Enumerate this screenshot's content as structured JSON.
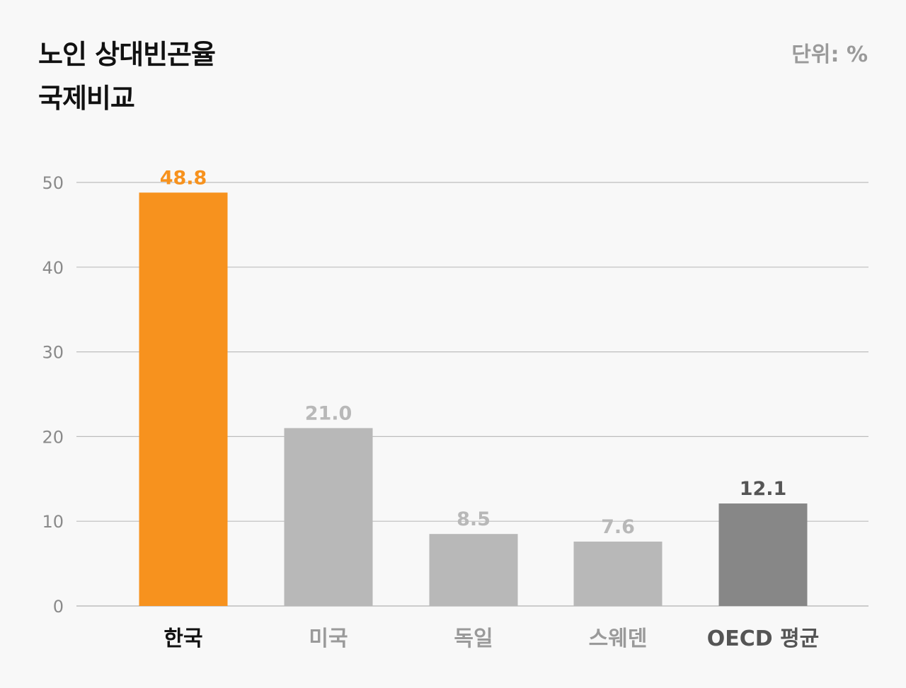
{
  "title": {
    "line1": "노인 상대빈곤율",
    "line2": "국제비교"
  },
  "unit_label": "단위: %",
  "colors": {
    "highlight": "#f7921e",
    "neutral": "#b8b8b8",
    "average": "#878787",
    "label_highlight": "#f7921e",
    "label_neutral": "#b8b8b8",
    "label_average": "#555555",
    "cat_highlight": "#111111",
    "cat_neutral": "#9a9a9a",
    "cat_average": "#555555",
    "grid": "#bdbdbd"
  },
  "chart_data": {
    "type": "bar",
    "categories": [
      "한국",
      "미국",
      "독일",
      "스웨덴",
      "OECD 평균"
    ],
    "values": [
      48.8,
      21.0,
      8.5,
      7.6,
      12.1
    ],
    "value_labels": [
      "48.8",
      "21.0",
      "8.5",
      "7.6",
      "12.1"
    ],
    "styles": [
      "highlight",
      "neutral",
      "neutral",
      "neutral",
      "average"
    ],
    "ylim": [
      0,
      50
    ],
    "yticks": [
      0,
      10,
      20,
      30,
      40,
      50
    ],
    "grid": true,
    "title": "노인 상대빈곤율 국제비교",
    "ylabel": "단위: %",
    "xlabel": ""
  }
}
